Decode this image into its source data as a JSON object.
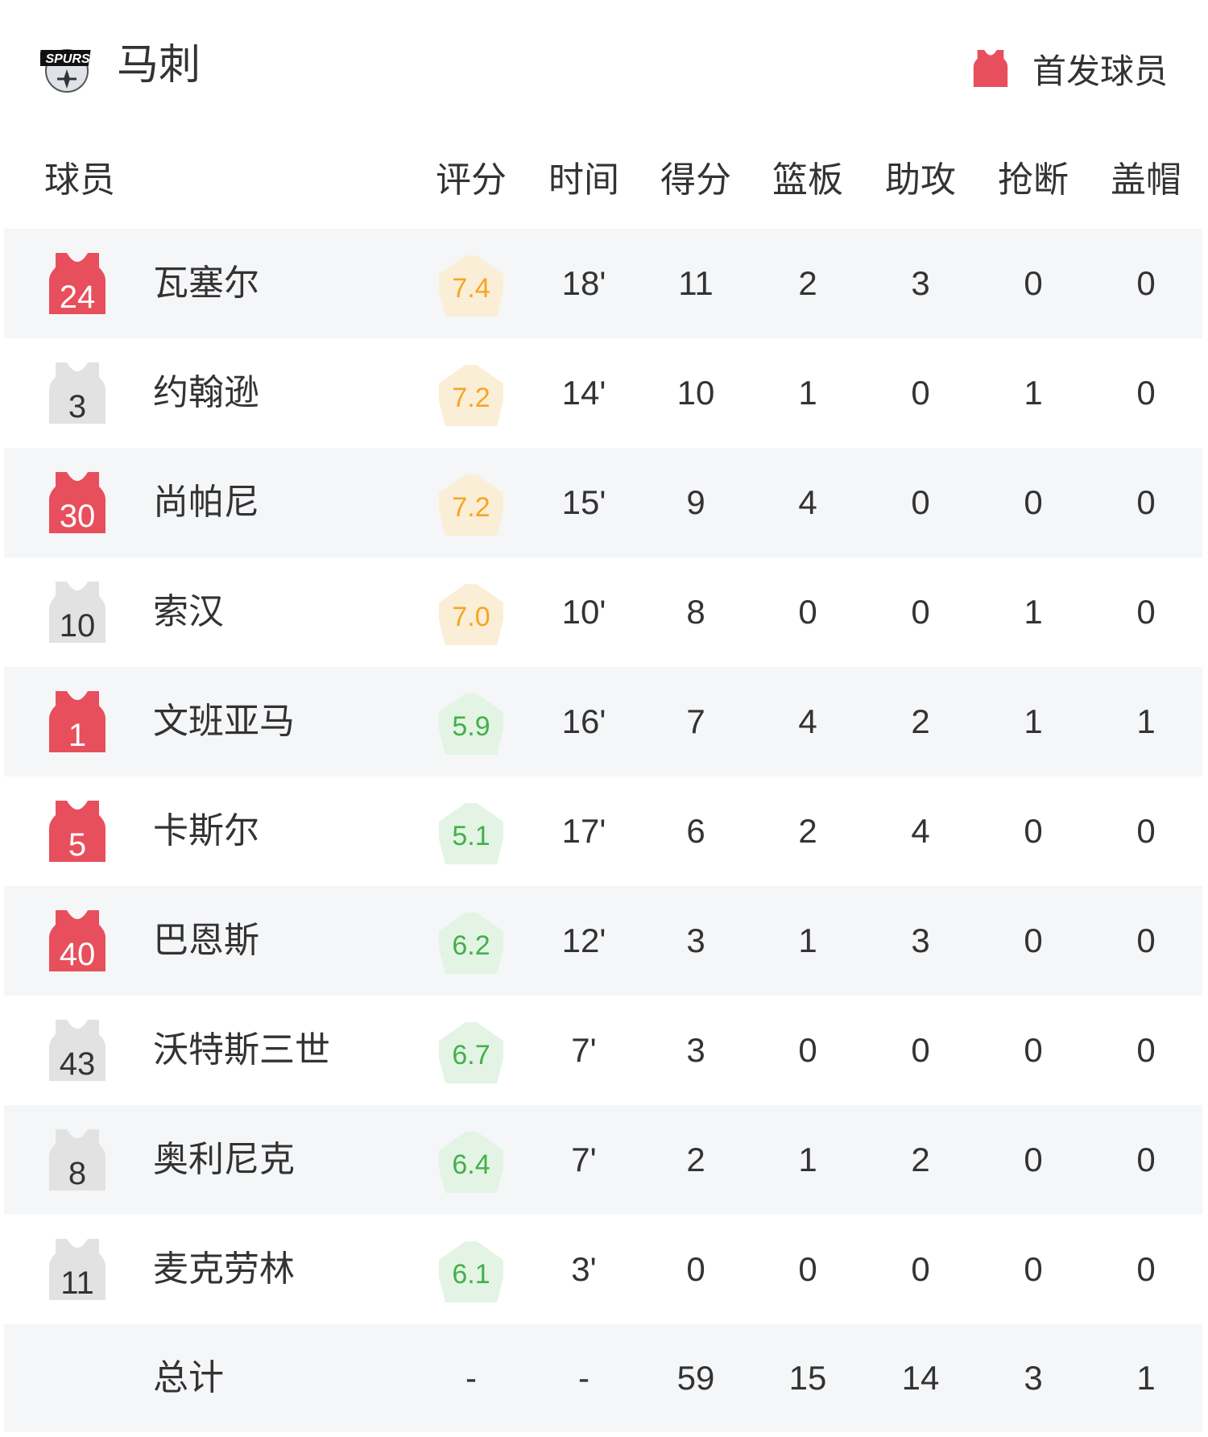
{
  "header": {
    "team_name": "马刺",
    "logo_text": "SPURS",
    "legend_label": "首发球员",
    "legend_color": "#e84f5c"
  },
  "columns": [
    "球员",
    "评分",
    "时间",
    "得分",
    "篮板",
    "助攻",
    "抢断",
    "盖帽"
  ],
  "colors": {
    "starter_jersey": "#e84f5c",
    "bench_jersey": "#e2e2e2",
    "rating_high_text": "#f5a623",
    "rating_high_bg": "#fbeed6",
    "rating_low_text": "#43b04a",
    "rating_low_bg": "#e3f4e4",
    "alt_row_bg": "#f5f6f8"
  },
  "players": [
    {
      "number": "24",
      "name": "瓦塞尔",
      "starter": true,
      "rating": "7.4",
      "time": "18'",
      "pts": "11",
      "reb": "2",
      "ast": "3",
      "stl": "0",
      "blk": "0"
    },
    {
      "number": "3",
      "name": "约翰逊",
      "starter": false,
      "rating": "7.2",
      "time": "14'",
      "pts": "10",
      "reb": "1",
      "ast": "0",
      "stl": "1",
      "blk": "0"
    },
    {
      "number": "30",
      "name": "尚帕尼",
      "starter": true,
      "rating": "7.2",
      "time": "15'",
      "pts": "9",
      "reb": "4",
      "ast": "0",
      "stl": "0",
      "blk": "0"
    },
    {
      "number": "10",
      "name": "索汉",
      "starter": false,
      "rating": "7.0",
      "time": "10'",
      "pts": "8",
      "reb": "0",
      "ast": "0",
      "stl": "1",
      "blk": "0"
    },
    {
      "number": "1",
      "name": "文班亚马",
      "starter": true,
      "rating": "5.9",
      "time": "16'",
      "pts": "7",
      "reb": "4",
      "ast": "2",
      "stl": "1",
      "blk": "1"
    },
    {
      "number": "5",
      "name": "卡斯尔",
      "starter": true,
      "rating": "5.1",
      "time": "17'",
      "pts": "6",
      "reb": "2",
      "ast": "4",
      "stl": "0",
      "blk": "0"
    },
    {
      "number": "40",
      "name": "巴恩斯",
      "starter": true,
      "rating": "6.2",
      "time": "12'",
      "pts": "3",
      "reb": "1",
      "ast": "3",
      "stl": "0",
      "blk": "0"
    },
    {
      "number": "43",
      "name": "沃特斯三世",
      "starter": false,
      "rating": "6.7",
      "time": "7'",
      "pts": "3",
      "reb": "0",
      "ast": "0",
      "stl": "0",
      "blk": "0"
    },
    {
      "number": "8",
      "name": "奥利尼克",
      "starter": false,
      "rating": "6.4",
      "time": "7'",
      "pts": "2",
      "reb": "1",
      "ast": "2",
      "stl": "0",
      "blk": "0"
    },
    {
      "number": "11",
      "name": "麦克劳林",
      "starter": false,
      "rating": "6.1",
      "time": "3'",
      "pts": "0",
      "reb": "0",
      "ast": "0",
      "stl": "0",
      "blk": "0"
    }
  ],
  "totals": {
    "label": "总计",
    "rating": "-",
    "time": "-",
    "pts": "59",
    "reb": "15",
    "ast": "14",
    "stl": "3",
    "blk": "1"
  }
}
